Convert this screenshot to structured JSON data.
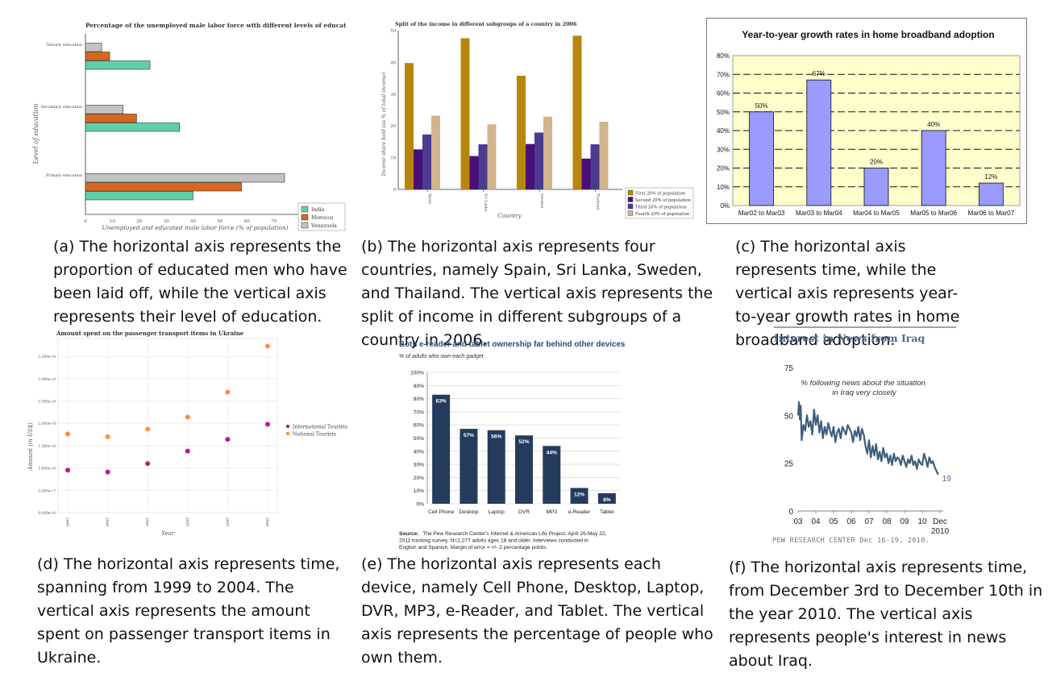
{
  "captions": {
    "a": "(a) The horizontal axis represents the proportion of educated men who have been laid off, while the vertical axis represents their level of education.",
    "b": "(b) The horizontal axis represents four countries, namely Spain, Sri Lanka, Sweden, and Thailand. The vertical axis represents the split of income in different subgroups of a country in 2006.",
    "c": "(c) The horizontal axis represents time, while the vertical axis represents year-to-year growth rates in home broadband adoption.",
    "d": "(d) The horizontal axis represents time, spanning from 1999 to 2004. The vertical axis represents the amount spent on passenger transport items in Ukraine.",
    "e": "(e) The horizontal axis represents each device, namely Cell Phone, Desktop, Laptop, DVR, MP3, e-Reader, and Tablet. The vertical axis represents the percentage of people who own them.",
    "f": "(f) The horizontal axis represents time, from December 3rd to December 10th in the year 2010. The vertical axis represents people's interest in news about Iraq."
  },
  "colors": {
    "a": {
      "India": "#5fcfa8",
      "Morocco": "#d7661f",
      "Venezuela": "#c3c3c3"
    },
    "b": [
      "#b8860b",
      "#4b0f7a",
      "#4b3b8f",
      "#d2b48c"
    ],
    "c": {
      "bar": "#9a9aff",
      "bg": "#ffffcc"
    },
    "d": {
      "International Tourists": "#c71585",
      "National Tourists": "#ff8c40"
    },
    "e": {
      "bar": "#243b5e"
    },
    "f": {
      "line": "#3e5f7d"
    }
  },
  "chart_data": [
    {
      "id": "a",
      "type": "bar",
      "orientation": "horizontal",
      "title": "Percentage of the unemployed male labor force with different levels of education in countri",
      "xlabel": "Unemployed and educated male labor force (% of population)",
      "ylabel": "Level of education",
      "categories": [
        "Tertiary education",
        "Secondary education",
        "Primary education"
      ],
      "series": [
        {
          "name": "India",
          "values": [
            24,
            35,
            40
          ]
        },
        {
          "name": "Morocco",
          "values": [
            9,
            19,
            58
          ]
        },
        {
          "name": "Venezuela",
          "values": [
            6,
            14,
            74
          ]
        }
      ],
      "xlim": [
        0,
        80
      ],
      "xticks": [
        "0",
        "10",
        "20",
        "30",
        "40",
        "50",
        "60",
        "70"
      ],
      "legend": "bottom-right"
    },
    {
      "id": "b",
      "type": "bar",
      "title": "Split of the income in different subgroups of a country in 2006",
      "xlabel": "Country",
      "ylabel": "Income share held (as % of total income)",
      "categories": [
        "Spain",
        "Sri Lanka",
        "Sweden",
        "Thailand"
      ],
      "series": [
        {
          "name": "First 20% of population",
          "values": [
            39.8,
            47.6,
            35.8,
            48.4
          ]
        },
        {
          "name": "Second 20% of population",
          "values": [
            12.6,
            10.5,
            14.3,
            9.7
          ]
        },
        {
          "name": "Third 20% of population",
          "values": [
            17.3,
            14.2,
            17.9,
            14.2
          ]
        },
        {
          "name": "Fourth 20% of population",
          "values": [
            23.2,
            20.5,
            22.9,
            21.3
          ]
        }
      ],
      "ylim": [
        0,
        50
      ],
      "yticks": [
        "0",
        "10",
        "20",
        "30",
        "40",
        "50"
      ],
      "legend": "bottom-right"
    },
    {
      "id": "c",
      "type": "bar",
      "title": "Year-to-year growth rates in home broadband adoption",
      "categories": [
        "Mar02 to Mar03",
        "Mar03 to Mar04",
        "Mar04 to Mar05",
        "Mar05 to Mar06",
        "Mar06 to Mar07"
      ],
      "values": [
        50,
        67,
        20,
        40,
        12
      ],
      "labels": [
        "50%",
        "67%",
        "20%",
        "40%",
        "12%"
      ],
      "ylim": [
        0,
        80
      ],
      "yticks": [
        "0%",
        "10%",
        "20%",
        "30%",
        "40%",
        "50%",
        "60%",
        "70%",
        "80%"
      ],
      "grid": true
    },
    {
      "id": "d",
      "type": "scatter",
      "title": "Amount spent on the passenger transport items in Ukraine",
      "xlabel": "Year",
      "ylabel": "Amount (in US$)",
      "x": [
        1999,
        2000,
        2001,
        2002,
        2003,
        2004
      ],
      "series": [
        {
          "name": "International Tourists",
          "values": [
            95000000.0,
            91000000.0,
            110000000.0,
            138000000.0,
            164000000.0,
            198000000.0
          ]
        },
        {
          "name": "National Tourists",
          "values": [
            176000000.0,
            170000000.0,
            187000000.0,
            214000000.0,
            270000000.0,
            373000000.0
          ]
        }
      ],
      "ylim": [
        0,
        390000000.0
      ],
      "yticks": [
        "0.000e+0",
        "5.000e+7",
        "1.000e+8",
        "1.500e+8",
        "2.000e+8",
        "2.500e+8",
        "3.000e+8",
        "3.500e+8"
      ],
      "xticks": [
        "1999",
        "2000",
        "2001",
        "2002",
        "2003",
        "2004"
      ],
      "legend": "right"
    },
    {
      "id": "e",
      "type": "bar",
      "title": "Both e-reader and tablet ownership far behind other devices",
      "subtitle": "% of adults who own each gadget",
      "categories": [
        "Cell Phone",
        "Desktop",
        "Laptop",
        "DVR",
        "MP3",
        "e-Reader",
        "Tablet"
      ],
      "values": [
        83,
        57,
        56,
        52,
        44,
        12,
        8
      ],
      "labels": [
        "83%",
        "57%",
        "56%",
        "52%",
        "44%",
        "12%",
        "8%"
      ],
      "ylim": [
        0,
        100
      ],
      "yticks": [
        "0%",
        "10%",
        "20%",
        "30%",
        "40%",
        "50%",
        "60%",
        "70%",
        "80%",
        "90%",
        "100%"
      ],
      "source_label": "Source:",
      "source_lines": [
        "The Pew Research Center's Internet & American Life Project, April 26-May 22,",
        "2011 tracking survey. N=2,277 adults ages 18 and older. Interviews conducted in",
        "English and Spanish. Margin of error = +/- 2 percentage points."
      ]
    },
    {
      "id": "f",
      "type": "line",
      "title": "Interest in News from Iraq",
      "annotation_lines": [
        "% following news about the situation",
        "in Iraq very closely"
      ],
      "end_label": "19",
      "xticks": [
        "03",
        "04",
        "05",
        "06",
        "07",
        "08",
        "09",
        "10",
        "Dec"
      ],
      "xtick_extra": "2010",
      "yticks": [
        "0",
        "25",
        "50",
        "75"
      ],
      "ylim": [
        0,
        75
      ],
      "xlim": [
        2003.0,
        2011.0
      ],
      "x": [
        2003.0,
        2003.05,
        2003.1,
        2003.15,
        2003.2,
        2003.3,
        2003.4,
        2003.5,
        2003.6,
        2003.7,
        2003.8,
        2003.9,
        2004.0,
        2004.1,
        2004.2,
        2004.3,
        2004.4,
        2004.5,
        2004.6,
        2004.7,
        2004.8,
        2004.9,
        2005.0,
        2005.1,
        2005.2,
        2005.3,
        2005.4,
        2005.5,
        2005.6,
        2005.7,
        2005.8,
        2005.9,
        2006.0,
        2006.1,
        2006.2,
        2006.3,
        2006.4,
        2006.5,
        2006.6,
        2006.7,
        2006.8,
        2006.9,
        2007.0,
        2007.1,
        2007.2,
        2007.3,
        2007.4,
        2007.5,
        2007.6,
        2007.7,
        2007.8,
        2007.9,
        2008.0,
        2008.1,
        2008.2,
        2008.3,
        2008.4,
        2008.5,
        2008.6,
        2008.7,
        2008.8,
        2008.9,
        2009.0,
        2009.1,
        2009.2,
        2009.3,
        2009.4,
        2009.5,
        2009.6,
        2009.7,
        2009.8,
        2009.9,
        2010.0,
        2010.1,
        2010.2,
        2010.3,
        2010.4,
        2010.5,
        2010.6,
        2010.7,
        2010.8,
        2010.9
      ],
      "values": [
        50,
        57,
        48,
        55,
        37,
        45,
        42,
        50,
        44,
        47,
        40,
        53,
        45,
        50,
        41,
        47,
        38,
        44,
        40,
        46,
        42,
        39,
        44,
        36,
        41,
        43,
        38,
        44,
        42,
        40,
        45,
        43,
        41,
        36,
        42,
        39,
        44,
        37,
        43,
        40,
        34,
        30,
        37,
        28,
        34,
        29,
        35,
        27,
        31,
        26,
        33,
        28,
        30,
        25,
        29,
        24,
        30,
        26,
        28,
        27,
        24,
        29,
        26,
        23,
        27,
        25,
        29,
        24,
        26,
        22,
        27,
        25,
        24,
        30,
        27,
        23,
        28,
        25,
        26,
        23,
        21,
        19
      ]
    }
  ]
}
